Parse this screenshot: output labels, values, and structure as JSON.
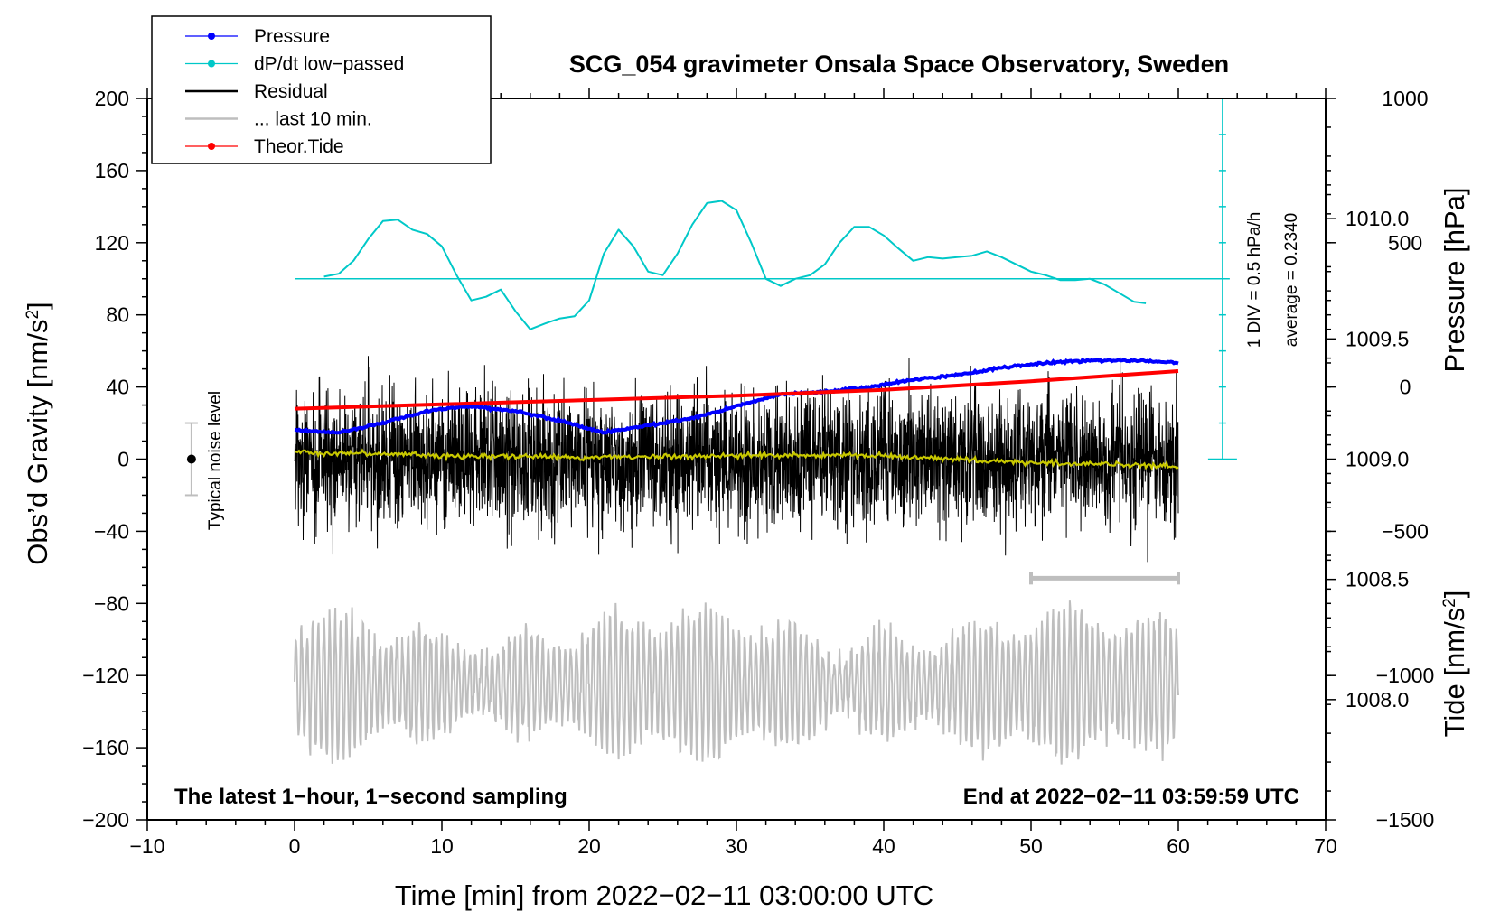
{
  "chart_data": {
    "type": "line",
    "title": "SCG_054 gravimeter Onsala Space Observatory, Sweden",
    "xlabel": "Time [min] from 2022−02−11 03:00:00 UTC",
    "ylabel_left": "Obs’d Gravity [nm/s²]",
    "ylabel_pressure": "Pressure [hPa]",
    "ylabel_tide": "Tide [nm/s²]",
    "xlim": [
      -10,
      70
    ],
    "ylim": [
      -200,
      200
    ],
    "pressure_lim": [
      1007.5,
      1010.5
    ],
    "tide_lim": [
      -1500,
      1000
    ],
    "x_ticks": [
      "−10",
      "0",
      "10",
      "20",
      "30",
      "40",
      "50",
      "60",
      "70"
    ],
    "x_tick_values": [
      -10,
      0,
      10,
      20,
      30,
      40,
      50,
      60,
      70
    ],
    "y_ticks": [
      "200",
      "160",
      "120",
      "80",
      "40",
      "0",
      "−40",
      "−80",
      "−120",
      "−160",
      "−200"
    ],
    "y_tick_values": [
      200,
      160,
      120,
      80,
      40,
      0,
      -40,
      -80,
      -120,
      -160,
      -200
    ],
    "pressure_ticks": [
      "1010.0",
      "1009.5",
      "1009.0",
      "1008.5",
      "1008.0"
    ],
    "pressure_tick_values": [
      1010.0,
      1009.5,
      1009.0,
      1008.5,
      1008.0
    ],
    "tide_ticks": [
      "1000",
      "500",
      "0",
      "−500",
      "−1000",
      "−1500"
    ],
    "tide_tick_values": [
      1000,
      500,
      0,
      -500,
      -1000,
      -1500
    ],
    "legend": [
      {
        "name": "Pressure",
        "color": "#0000ff",
        "marker": true
      },
      {
        "name": "dP/dt low−passed",
        "color": "#00c8c8",
        "marker": true
      },
      {
        "name": "Residual",
        "color": "#000000",
        "marker": false
      },
      {
        "name": "... last 10 min.",
        "color": "#bebebe",
        "marker": false
      },
      {
        "name": "Theor.Tide",
        "color": "#ff0000",
        "marker": true
      }
    ],
    "series": {
      "pressure": {
        "name": "Pressure",
        "color": "#0000ff",
        "units": "hPa",
        "x": [
          0,
          3,
          6,
          9,
          12,
          15,
          18,
          21,
          24,
          27,
          30,
          33,
          36,
          39,
          42,
          45,
          48,
          51,
          54,
          57,
          60
        ],
        "values": [
          1009.12,
          1009.11,
          1009.15,
          1009.2,
          1009.22,
          1009.2,
          1009.16,
          1009.11,
          1009.14,
          1009.17,
          1009.22,
          1009.27,
          1009.28,
          1009.3,
          1009.33,
          1009.35,
          1009.38,
          1009.4,
          1009.41,
          1009.41,
          1009.4
        ]
      },
      "dpdt": {
        "name": "dP/dt low−passed",
        "color": "#00c8c8",
        "units": "hPa/h",
        "x": [
          2,
          3,
          4,
          5,
          6,
          7,
          8,
          9,
          10,
          11,
          12,
          13,
          14,
          15,
          16,
          17,
          18,
          19,
          20,
          21,
          22,
          23,
          24,
          25,
          26,
          27,
          28,
          29,
          30,
          31,
          32,
          33,
          34,
          35,
          36,
          37,
          38,
          39,
          40,
          41,
          42,
          43,
          44,
          45,
          46,
          47,
          48,
          49,
          50,
          51,
          52,
          53,
          54,
          55,
          56,
          57,
          57.8
        ],
        "values": [
          0.03,
          0.07,
          0.25,
          0.55,
          0.8,
          0.82,
          0.68,
          0.62,
          0.45,
          0.05,
          -0.3,
          -0.25,
          -0.15,
          -0.45,
          -0.7,
          -0.62,
          -0.55,
          -0.52,
          -0.3,
          0.35,
          0.68,
          0.45,
          0.1,
          0.05,
          0.35,
          0.75,
          1.05,
          1.08,
          0.95,
          0.5,
          0.0,
          -0.1,
          0.0,
          0.05,
          0.2,
          0.5,
          0.72,
          0.72,
          0.6,
          0.42,
          0.25,
          0.3,
          0.28,
          0.3,
          0.32,
          0.38,
          0.3,
          0.2,
          0.1,
          0.05,
          -0.02,
          -0.02,
          0.0,
          -0.08,
          -0.2,
          -0.32,
          -0.34
        ]
      },
      "residual": {
        "name": "Residual",
        "color": "#000000",
        "units": "nm/s²",
        "x_range": [
          0,
          60
        ],
        "mean": 0,
        "envelope": 40
      },
      "smoothed_residual": {
        "color": "#c8c800",
        "x": [
          0,
          10,
          20,
          30,
          40,
          50,
          60
        ],
        "values": [
          4,
          2,
          1,
          2,
          2,
          -2,
          -4
        ]
      },
      "last_10_min": {
        "name": "... last 10 min.",
        "color": "#bebebe",
        "units": "nm/s²",
        "x_range": [
          0,
          60
        ],
        "center": -125,
        "envelope": 35
      },
      "tide": {
        "name": "Theor.Tide",
        "color": "#ff0000",
        "units": "nm/s²",
        "x": [
          0,
          10,
          20,
          30,
          40,
          50,
          60
        ],
        "values": [
          -75,
          -60,
          -45,
          -30,
          -10,
          20,
          55
        ]
      }
    },
    "dpdt_scale": {
      "label": "1 DIV = 0.5 hPa/h",
      "average_label": "average = 0.2340",
      "zero_level_y": 100
    },
    "noise_level": {
      "label": "Typical noise level",
      "x": -7,
      "center": 0,
      "range": [
        -20,
        20
      ]
    },
    "last10_bar": {
      "x": [
        50,
        60
      ],
      "y": -66
    },
    "annotations": {
      "bottom_left": "The latest 1−hour, 1−second sampling",
      "bottom_right": "End at 2022−02−11 03:59:59 UTC"
    }
  }
}
